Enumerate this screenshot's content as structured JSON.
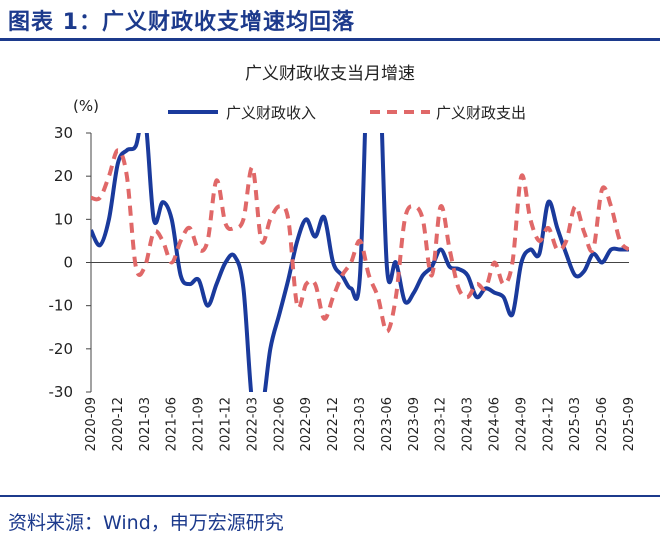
{
  "header": {
    "figure_title": "图表 1：广义财政收支增速均回落"
  },
  "footer": {
    "source": "资料来源：Wind，申万宏源研究"
  },
  "colors": {
    "accent": "#1c3a8c",
    "revenue_line": "#1a3a9c",
    "expenditure_line": "#e06868"
  },
  "chart_data": {
    "type": "line",
    "title": "广义财政收支当月增速",
    "ylabel": "(%)",
    "xlabel": "",
    "ylim": [
      -30,
      30
    ],
    "yticks": [
      30,
      20,
      10,
      0,
      -10,
      -20,
      -30
    ],
    "legend_position": "top-center",
    "grid": false,
    "categories": [
      "2020-09",
      "2020-10",
      "2020-11",
      "2020-12",
      "2021-01",
      "2021-02",
      "2021-03",
      "2021-04",
      "2021-05",
      "2021-06",
      "2021-07",
      "2021-08",
      "2021-09",
      "2021-10",
      "2021-11",
      "2021-12",
      "2022-01",
      "2022-02",
      "2022-03",
      "2022-04",
      "2022-05",
      "2022-06",
      "2022-07",
      "2022-08",
      "2022-09",
      "2022-10",
      "2022-11",
      "2022-12",
      "2023-01",
      "2023-02",
      "2023-03",
      "2023-04",
      "2023-05",
      "2023-06",
      "2023-07",
      "2023-08",
      "2023-09",
      "2023-10",
      "2023-11",
      "2023-12",
      "2024-01",
      "2024-02",
      "2024-03",
      "2024-04",
      "2024-05",
      "2024-06",
      "2024-07",
      "2024-08",
      "2024-09",
      "2024-10",
      "2024-11",
      "2024-12",
      "2025-01",
      "2025-02",
      "2025-03",
      "2025-04",
      "2025-05",
      "2025-06",
      "2025-07",
      "2025-08",
      "2025-09"
    ],
    "x_tick_labels": [
      "2020-09",
      "2020-12",
      "2021-03",
      "2021-06",
      "2021-09",
      "2021-12",
      "2022-03",
      "2022-06",
      "2022-09",
      "2022-12",
      "2023-03",
      "2023-06",
      "2023-09",
      "2023-12",
      "2024-03",
      "2024-06",
      "2024-09",
      "2024-12",
      "2025-03",
      "2025-06",
      "2025-09"
    ],
    "series": [
      {
        "name": "广义财政收入",
        "style": "solid",
        "values": [
          7.5,
          4,
          10,
          23,
          26,
          27,
          34,
          10,
          14,
          10,
          -3,
          -5,
          -4,
          -10,
          -5,
          0,
          1.5,
          -6,
          -33,
          -35,
          -20,
          -12,
          -4,
          5,
          10,
          6,
          10.5,
          0,
          -3,
          -6,
          -3,
          55,
          55,
          -1,
          0,
          -9,
          -7,
          -3,
          -1,
          3,
          -1,
          -1.5,
          -3,
          -8,
          -6,
          -7,
          -8,
          -12,
          0,
          3,
          2,
          14,
          8,
          2,
          -3,
          -2,
          2,
          0,
          3,
          3,
          3
        ]
      },
      {
        "name": "广义财政支出",
        "style": "dashed",
        "values": [
          15,
          15,
          20,
          26,
          20,
          -1,
          -1,
          7,
          5,
          0,
          5,
          8,
          3,
          5,
          19,
          9,
          8,
          10,
          22,
          5,
          10,
          13,
          10,
          -10,
          -5,
          -5,
          -13,
          -8,
          -3,
          0,
          5,
          -3,
          -8,
          -16,
          -8,
          10,
          13,
          10,
          -3,
          13,
          3,
          -6,
          -8,
          -5,
          -6,
          0,
          -5,
          0,
          20,
          10,
          5,
          8,
          3,
          5,
          13,
          7,
          3,
          17,
          13,
          5,
          3
        ]
      }
    ]
  }
}
